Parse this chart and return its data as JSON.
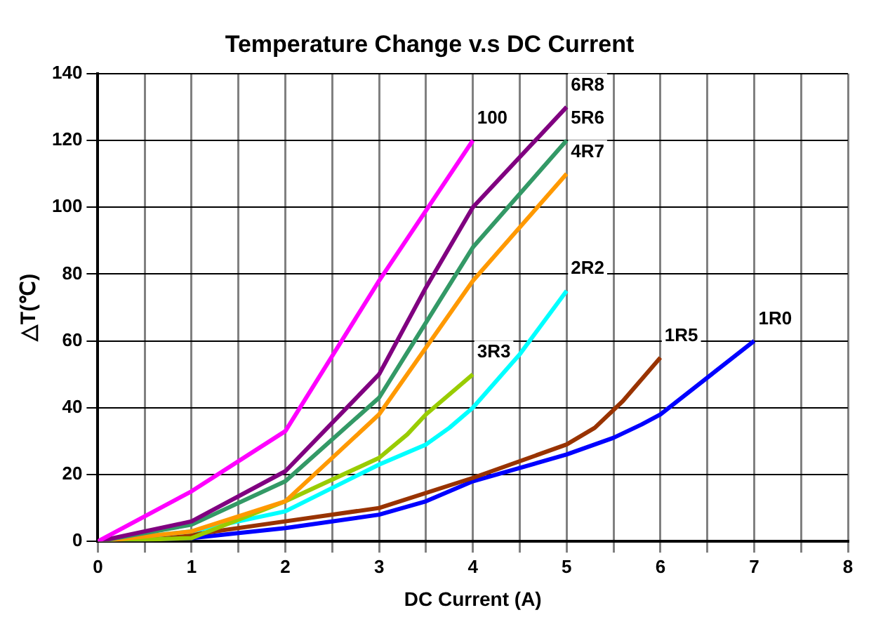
{
  "chart_data": {
    "type": "line",
    "title": "Temperature Change v.s DC Current",
    "xlabel": "DC Current (A)",
    "ylabel": "△T(℃)",
    "xlim": [
      0,
      8
    ],
    "ylim": [
      0,
      140
    ],
    "xticks": [
      0,
      {
        "value": 0.5,
        "label": null
      },
      1,
      {
        "value": 1.5,
        "label": null
      },
      2,
      {
        "value": 2.5,
        "label": null
      },
      3,
      {
        "value": 3.5,
        "label": null
      },
      4,
      {
        "value": 4.5,
        "label": null
      },
      5,
      {
        "value": 5.5,
        "label": null
      },
      6,
      {
        "value": 6.5,
        "label": null
      },
      7,
      {
        "value": 7.5,
        "label": null
      },
      8
    ],
    "yticks": [
      0,
      20,
      40,
      60,
      80,
      100,
      120,
      140
    ],
    "grid": true,
    "legend": false,
    "marker": "none",
    "line_style": "solid",
    "series": [
      {
        "name": "100",
        "color": "#ff00ff",
        "x": [
          0,
          1,
          2,
          3,
          4
        ],
        "values": [
          0,
          15,
          33,
          78,
          120
        ]
      },
      {
        "name": "6R8",
        "color": "#800080",
        "x": [
          0,
          1,
          2,
          3,
          3.5,
          4,
          5
        ],
        "values": [
          0,
          6,
          21,
          50,
          76,
          100,
          130
        ]
      },
      {
        "name": "5R6",
        "color": "#339966",
        "x": [
          0,
          1,
          2,
          3,
          4,
          5
        ],
        "values": [
          0,
          5,
          18,
          43,
          88,
          120
        ]
      },
      {
        "name": "4R7",
        "color": "#ff9900",
        "x": [
          0,
          1,
          2,
          3,
          4,
          5
        ],
        "values": [
          0,
          3,
          12,
          38,
          78,
          110
        ]
      },
      {
        "name": "3R3",
        "color": "#99cc00",
        "x": [
          0,
          1,
          2,
          3,
          3.3,
          3.5,
          4
        ],
        "values": [
          0,
          1,
          12,
          25,
          32,
          38,
          50
        ]
      },
      {
        "name": "2R2",
        "color": "#00ffff",
        "x": [
          0,
          1,
          2,
          3,
          3.5,
          3.75,
          4,
          4.5,
          5
        ],
        "values": [
          0,
          3,
          9,
          23,
          29,
          34,
          40,
          56,
          75
        ]
      },
      {
        "name": "1R5",
        "color": "#993300",
        "x": [
          0,
          1,
          2,
          3,
          4,
          5,
          5.3,
          5.6,
          6
        ],
        "values": [
          0,
          2,
          6,
          10,
          19,
          29,
          34,
          42,
          55
        ]
      },
      {
        "name": "1R0",
        "color": "#0000ff",
        "x": [
          0,
          1,
          2,
          3,
          3.5,
          4,
          5,
          5.5,
          5.8,
          6,
          7
        ],
        "values": [
          0,
          1,
          4,
          8,
          12,
          18,
          26,
          31,
          35,
          38,
          60
        ]
      }
    ]
  }
}
